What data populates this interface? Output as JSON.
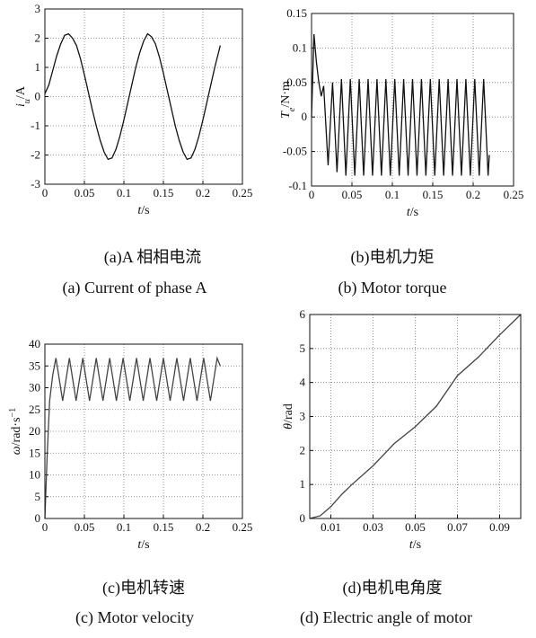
{
  "chart_data": [
    {
      "type": "line",
      "grid": true,
      "color": "#111111",
      "xlabel": [
        {
          "text": "t",
          "style": "italic"
        },
        {
          "text": "/s"
        }
      ],
      "ylabel": [
        {
          "text": "i",
          "style": "italic"
        },
        {
          "text": "u",
          "style": "sub"
        },
        {
          "text": "/A"
        }
      ],
      "caption": "(a)A 相相电流",
      "caption_en": "(a) Current of phase A",
      "xlim": [
        0,
        0.25
      ],
      "xticks": [
        0,
        0.05,
        0.1,
        0.15,
        0.2,
        0.25
      ],
      "ylim": [
        -3,
        3
      ],
      "yticks": [
        -3,
        -2,
        -1,
        0,
        1,
        2,
        3
      ],
      "x": [
        0,
        0.005,
        0.01,
        0.015,
        0.02,
        0.025,
        0.03,
        0.035,
        0.04,
        0.045,
        0.05,
        0.055,
        0.06,
        0.065,
        0.07,
        0.075,
        0.08,
        0.085,
        0.09,
        0.095,
        0.1,
        0.105,
        0.11,
        0.115,
        0.12,
        0.125,
        0.13,
        0.135,
        0.14,
        0.145,
        0.15,
        0.155,
        0.16,
        0.165,
        0.17,
        0.175,
        0.18,
        0.185,
        0.19,
        0.195,
        0.2,
        0.205,
        0.21,
        0.215,
        0.222
      ],
      "values": [
        0.1,
        0.4,
        0.9,
        1.4,
        1.8,
        2.1,
        2.15,
        2.0,
        1.75,
        1.3,
        0.75,
        0.15,
        -0.45,
        -1.0,
        -1.5,
        -1.9,
        -2.15,
        -2.1,
        -1.8,
        -1.35,
        -0.8,
        -0.2,
        0.4,
        1.0,
        1.5,
        1.9,
        2.15,
        2.05,
        1.8,
        1.35,
        0.8,
        0.2,
        -0.4,
        -1.0,
        -1.5,
        -1.9,
        -2.15,
        -2.1,
        -1.8,
        -1.35,
        -0.8,
        -0.2,
        0.4,
        1.0,
        1.75
      ]
    },
    {
      "type": "line",
      "grid": true,
      "color": "#111111",
      "xlabel": [
        {
          "text": "t",
          "style": "italic"
        },
        {
          "text": "/s"
        }
      ],
      "ylabel": [
        {
          "text": "T",
          "style": "italic"
        },
        {
          "text": "e",
          "style": "sub"
        },
        {
          "text": "/N·m"
        }
      ],
      "caption": "(b)电机力矩",
      "caption_en": "(b) Motor torque",
      "xlim": [
        0,
        0.25
      ],
      "xticks": [
        0,
        0.05,
        0.1,
        0.15,
        0.2,
        0.25
      ],
      "ylim": [
        -0.1,
        0.15
      ],
      "yticks": [
        -0.1,
        -0.05,
        0,
        0.05,
        0.1,
        0.15
      ],
      "x": [
        0,
        0.003,
        0.006,
        0.009,
        0.012,
        0.015,
        0.0205,
        0.026,
        0.0315,
        0.037,
        0.0425,
        0.048,
        0.0535,
        0.059,
        0.0645,
        0.07,
        0.0755,
        0.081,
        0.0865,
        0.092,
        0.0975,
        0.103,
        0.1085,
        0.114,
        0.1195,
        0.125,
        0.1305,
        0.136,
        0.1415,
        0.147,
        0.1525,
        0.158,
        0.1635,
        0.169,
        0.1745,
        0.18,
        0.1855,
        0.191,
        0.1965,
        0.202,
        0.2075,
        0.213,
        0.2185,
        0.22
      ],
      "values": [
        0,
        0.12,
        0.08,
        0.05,
        0.03,
        0.045,
        -0.07,
        0.05,
        -0.08,
        0.055,
        -0.085,
        0.055,
        -0.085,
        0.055,
        -0.085,
        0.055,
        -0.085,
        0.055,
        -0.085,
        0.055,
        -0.085,
        0.055,
        -0.085,
        0.055,
        -0.085,
        0.055,
        -0.085,
        0.055,
        -0.085,
        0.055,
        -0.085,
        0.055,
        -0.085,
        0.055,
        -0.085,
        0.055,
        -0.085,
        0.055,
        -0.085,
        0.055,
        -0.085,
        0.055,
        -0.085,
        -0.055
      ]
    },
    {
      "type": "line",
      "grid": true,
      "color": "#444444",
      "xlabel": [
        {
          "text": "t",
          "style": "italic"
        },
        {
          "text": "/s"
        }
      ],
      "ylabel": [
        {
          "text": "ω",
          "style": "italic"
        },
        {
          "text": "/rad·s"
        },
        {
          "text": "−1",
          "style": "sup"
        }
      ],
      "caption": "(c)电机转速",
      "caption_en": "(c) Motor velocity",
      "xlim": [
        0,
        0.25
      ],
      "xticks": [
        0,
        0.05,
        0.1,
        0.15,
        0.2,
        0.25
      ],
      "ylim": [
        0,
        40
      ],
      "yticks": [
        0,
        5,
        10,
        15,
        20,
        25,
        30,
        35,
        40
      ],
      "x": [
        0,
        0.003,
        0.006,
        0.01,
        0.014,
        0.0225,
        0.031,
        0.0395,
        0.048,
        0.0565,
        0.065,
        0.0735,
        0.082,
        0.0905,
        0.099,
        0.1075,
        0.116,
        0.1245,
        0.133,
        0.1415,
        0.15,
        0.1585,
        0.167,
        0.1755,
        0.184,
        0.1925,
        0.201,
        0.2095,
        0.218,
        0.222
      ],
      "values": [
        0,
        15,
        27,
        33,
        36.8,
        27,
        36.8,
        27,
        36.8,
        27,
        36.8,
        27,
        36.8,
        27,
        36.8,
        27,
        36.8,
        27,
        36.8,
        27,
        36.8,
        27,
        36.8,
        27,
        36.8,
        27,
        36.8,
        27,
        36.8,
        35
      ]
    },
    {
      "type": "line",
      "grid": true,
      "color": "#444444",
      "xlabel": [
        {
          "text": "t",
          "style": "italic"
        },
        {
          "text": "/s"
        }
      ],
      "ylabel": [
        {
          "text": "θ",
          "style": "italic"
        },
        {
          "text": "/rad"
        }
      ],
      "caption": "(d)电机电角度",
      "caption_en": "(d) Electric angle of motor",
      "xlim": [
        0,
        0.1
      ],
      "xticks": [
        0.01,
        0.03,
        0.05,
        0.07,
        0.09
      ],
      "ylim": [
        0,
        6
      ],
      "yticks": [
        0,
        1,
        2,
        3,
        4,
        5,
        6
      ],
      "x": [
        0,
        0.005,
        0.01,
        0.015,
        0.02,
        0.03,
        0.04,
        0.05,
        0.06,
        0.07,
        0.08,
        0.09,
        0.1
      ],
      "values": [
        0,
        0.08,
        0.35,
        0.7,
        1.0,
        1.55,
        2.2,
        2.7,
        3.3,
        4.2,
        4.75,
        5.4,
        6.0
      ]
    }
  ]
}
